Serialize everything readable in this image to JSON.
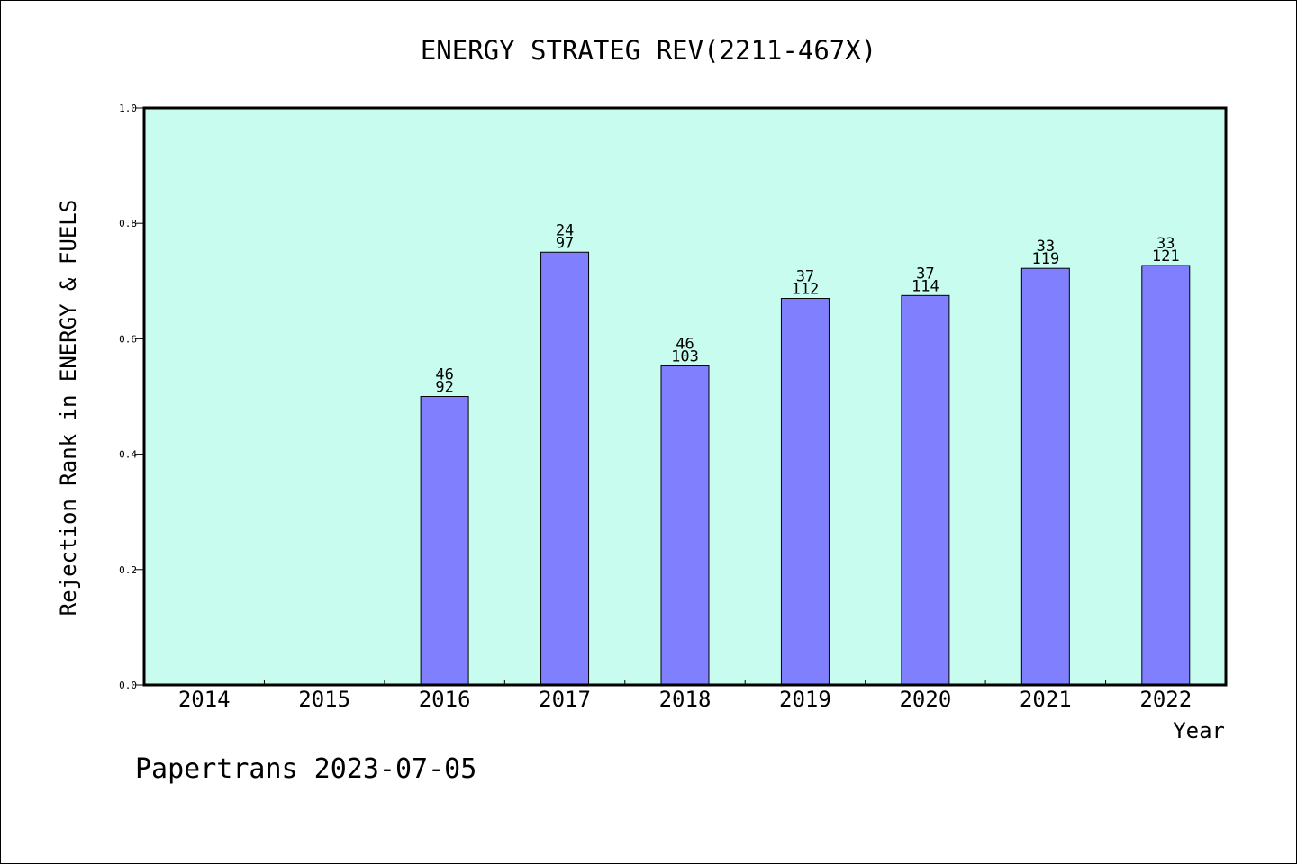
{
  "chart_data": {
    "type": "bar",
    "title": "ENERGY STRATEG REV(2211-467X)",
    "xlabel": "Year",
    "ylabel": "Rejection Rank in ENERGY & FUELS",
    "footer": "Papertrans 2023-07-05",
    "ylim": [
      0,
      1.0
    ],
    "yticks": [
      "0.0",
      "0.2",
      "0.4",
      "0.6",
      "0.8",
      "1.0"
    ],
    "categories": [
      "2014",
      "2015",
      "2016",
      "2017",
      "2018",
      "2019",
      "2020",
      "2021",
      "2022"
    ],
    "values": [
      null,
      null,
      0.5,
      0.75,
      0.553,
      0.67,
      0.675,
      0.722,
      0.727
    ],
    "labels_top": [
      "",
      "",
      "46",
      "24",
      "46",
      "37",
      "37",
      "33",
      "33"
    ],
    "labels_bottom": [
      "",
      "",
      "92",
      "97",
      "103",
      "112",
      "114",
      "119",
      "121"
    ],
    "colors": {
      "plot_background": "#c8fcee",
      "bar_fill": "#8080ff",
      "axis": "#000000"
    }
  }
}
